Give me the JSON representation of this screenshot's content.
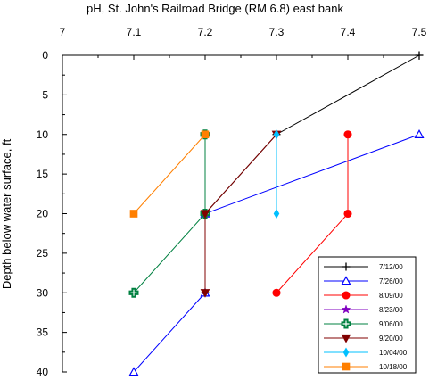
{
  "chart_data": {
    "type": "line",
    "title": "pH, St. John's Railroad Bridge (RM 6.8) east bank",
    "xlabel": "",
    "ylabel": "Depth below water surface, ft",
    "xlim": [
      7,
      7.5
    ],
    "ylim": [
      0,
      40
    ],
    "y_inverted": true,
    "x_axis_position": "top",
    "x_ticks": [
      "7",
      "7.1",
      "7.2",
      "7.3",
      "7.4",
      "7.5"
    ],
    "y_ticks": [
      "0",
      "5",
      "10",
      "15",
      "20",
      "25",
      "30",
      "35",
      "40"
    ],
    "grid": false,
    "legend_position": "bottom-right",
    "series": [
      {
        "name": "7/12/00",
        "color": "#000000",
        "marker": "plus",
        "points": [
          [
            7.5,
            0
          ],
          [
            7.3,
            10
          ],
          [
            7.2,
            20
          ],
          [
            7.2,
            30
          ]
        ]
      },
      {
        "name": "7/26/00",
        "color": "#0000ff",
        "marker": "triangle-open",
        "points": [
          [
            7.5,
            10
          ],
          [
            7.2,
            20
          ],
          [
            7.2,
            30
          ],
          [
            7.1,
            40
          ]
        ]
      },
      {
        "name": "8/09/00",
        "color": "#ff0000",
        "marker": "circle",
        "points": [
          [
            7.4,
            10
          ],
          [
            7.4,
            20
          ],
          [
            7.3,
            30
          ]
        ]
      },
      {
        "name": "8/23/00",
        "color": "#8000c0",
        "marker": "star",
        "points": [
          [
            7.2,
            20
          ]
        ]
      },
      {
        "name": "9/06/00",
        "color": "#008040",
        "marker": "cross-open",
        "points": [
          [
            7.2,
            10
          ],
          [
            7.2,
            20
          ],
          [
            7.1,
            30
          ]
        ]
      },
      {
        "name": "9/20/00",
        "color": "#800000",
        "marker": "triangle-down",
        "points": [
          [
            7.3,
            10
          ],
          [
            7.2,
            20
          ],
          [
            7.2,
            30
          ]
        ]
      },
      {
        "name": "10/04/00",
        "color": "#00c0ff",
        "marker": "diamond",
        "points": [
          [
            7.3,
            10
          ],
          [
            7.3,
            20
          ]
        ]
      },
      {
        "name": "10/18/00",
        "color": "#ff7f00",
        "marker": "square",
        "points": [
          [
            7.2,
            10
          ],
          [
            7.1,
            20
          ]
        ]
      }
    ]
  }
}
